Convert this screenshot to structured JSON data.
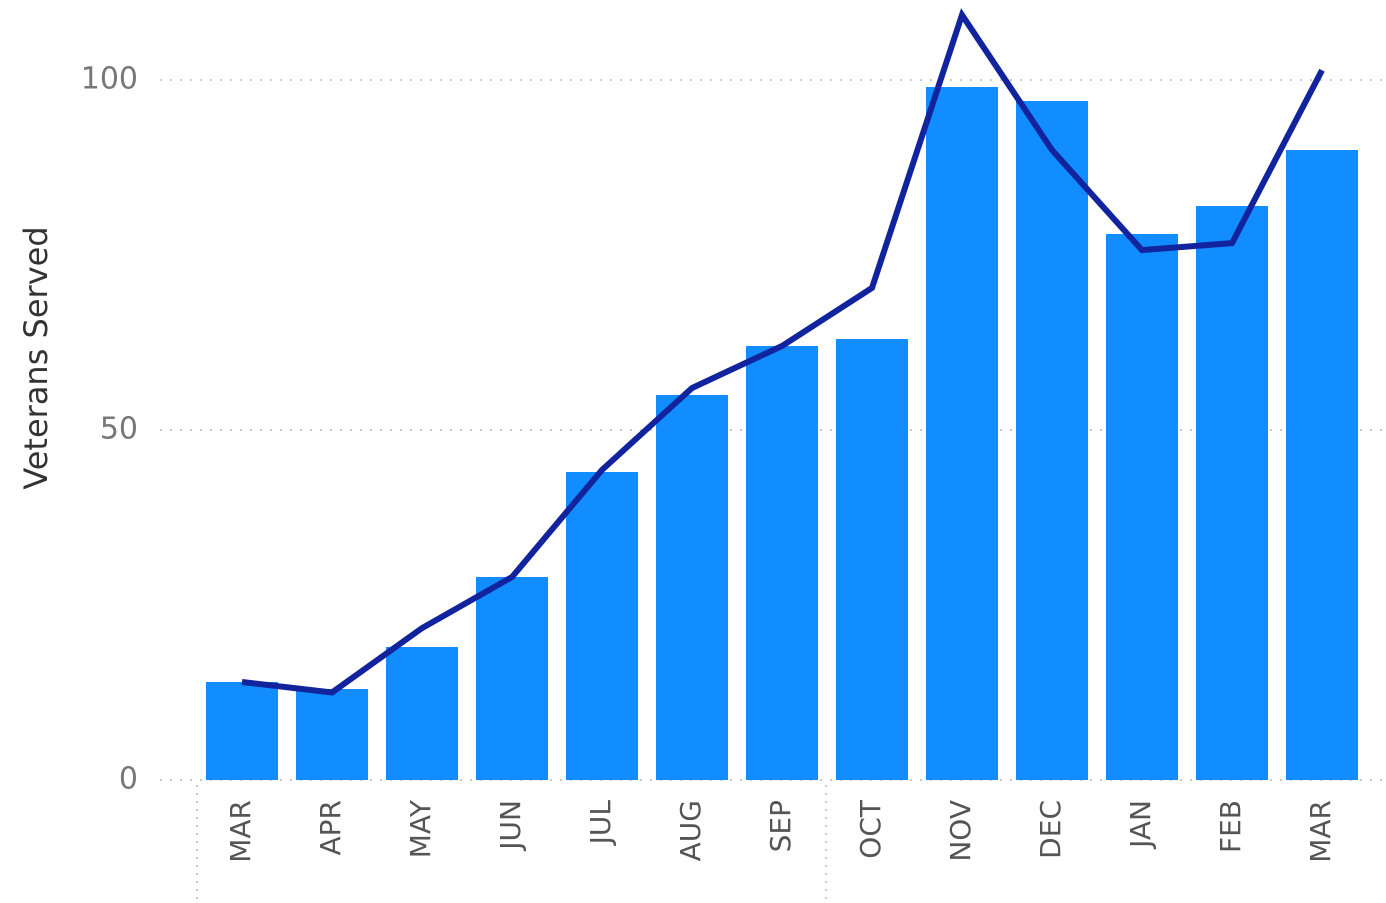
{
  "chart_data": {
    "type": "bar_line",
    "y_axis_label": "Veterans Served",
    "categories": [
      "MAR",
      "APR",
      "MAY",
      "JUN",
      "JUL",
      "AUG",
      "SEP",
      "OCT",
      "NOV",
      "DEC",
      "JAN",
      "FEB",
      "MAR"
    ],
    "series": [
      {
        "type": "bar",
        "color": "#118dff",
        "values": [
          14,
          13,
          19,
          29,
          44,
          55,
          62,
          63,
          99,
          97,
          78,
          82,
          90
        ]
      },
      {
        "type": "line",
        "color": "#12239e",
        "values": [
          14,
          12.5,
          21.7,
          29,
          44.3,
          56,
          62,
          70.3,
          109.3,
          90,
          75.7,
          76.7,
          101.4
        ]
      }
    ],
    "ylim": [
      0,
      111
    ],
    "yticks": [
      0,
      50,
      100
    ],
    "grid": true
  }
}
